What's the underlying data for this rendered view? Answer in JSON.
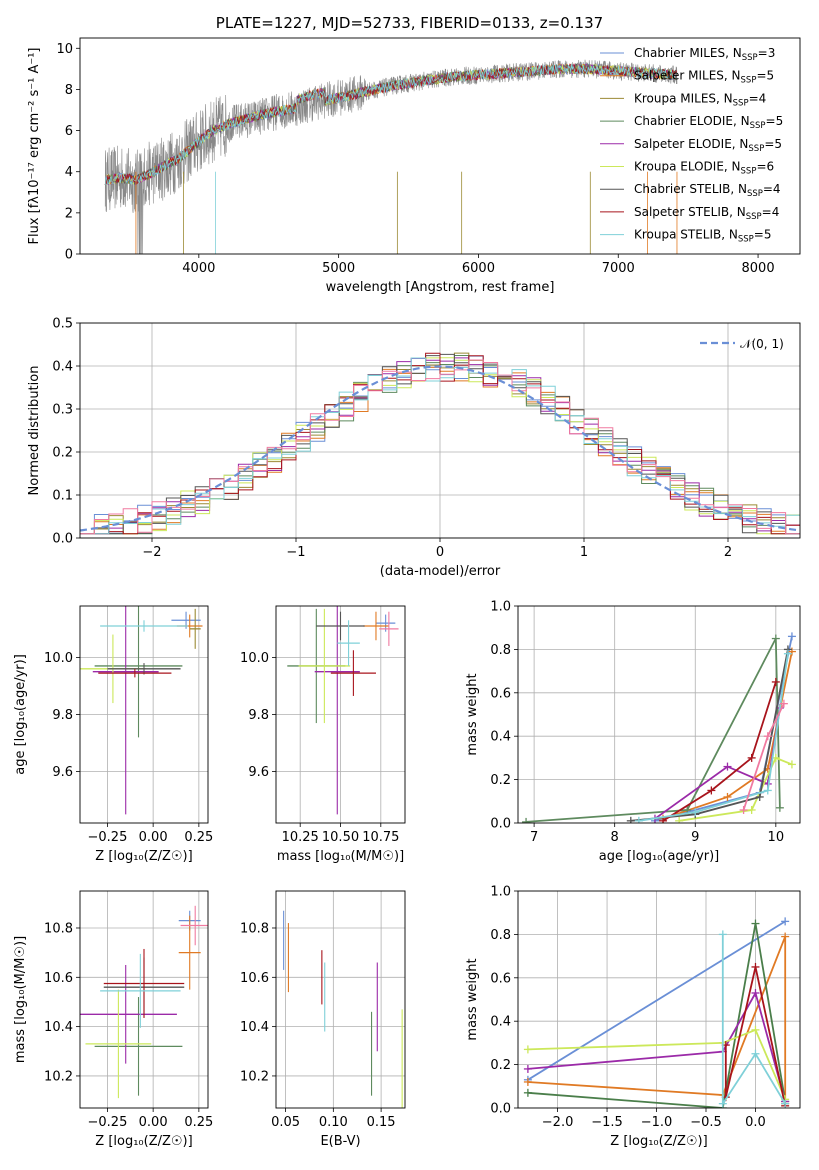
{
  "colors": [
    "#6a8fd6",
    "#e07a24",
    "#9b8a34",
    "#5e8a5e",
    "#9b2aa8",
    "#cce85a",
    "#555555",
    "#a8141c",
    "#7fd0d8",
    "#888888",
    "#f07aa0",
    "#4a7e4a"
  ],
  "chart_data": [
    {
      "id": "spectrum",
      "type": "line",
      "title": "PLATE=1227, MJD=52733, FIBERID=0133, z=0.137",
      "xlabel": "wavelength [Angstrom, rest frame]",
      "ylabel": "Flux [fλ10⁻¹⁷ erg cm⁻² s⁻¹ A⁻¹]",
      "xlim": [
        3150,
        8300
      ],
      "ylim": [
        0,
        10.5
      ],
      "xticks": [
        4000,
        5000,
        6000,
        7000,
        8000
      ],
      "yticks": [
        0,
        2,
        4,
        6,
        8,
        10
      ],
      "xtick_labels": [
        "4000",
        "5000",
        "6000",
        "7000",
        "8000"
      ],
      "ytick_labels": [
        "0",
        "2",
        "4",
        "6",
        "8",
        "10"
      ],
      "data_series": {
        "name": "data",
        "color_index": 9,
        "x": [
          3330,
          3450,
          3550,
          3650,
          3750,
          3850,
          3950,
          4100,
          4250,
          4400,
          4550,
          4700,
          4850,
          5000,
          5200,
          5400,
          5600,
          5800,
          6000,
          6200,
          6400,
          6600,
          6800,
          7000,
          7200,
          7420
        ],
        "y": [
          3.6,
          3.7,
          3.5,
          3.9,
          4.2,
          4.6,
          5.2,
          6.0,
          6.4,
          6.6,
          6.9,
          7.1,
          7.4,
          7.6,
          7.9,
          8.2,
          8.4,
          8.6,
          8.7,
          8.8,
          8.9,
          9.0,
          9.0,
          8.9,
          8.8,
          8.7
        ]
      },
      "model_x": [
        3330,
        3450,
        3550,
        3650,
        3750,
        3850,
        3950,
        4100,
        4250,
        4400,
        4550,
        4700,
        4850,
        5000,
        5200,
        5400,
        5600,
        5800,
        6000,
        6200,
        6400,
        6600,
        6800,
        7000,
        7200,
        7420
      ],
      "model_y": [
        3.6,
        3.7,
        3.6,
        3.9,
        4.3,
        4.6,
        5.2,
        6.0,
        6.4,
        6.7,
        6.9,
        7.1,
        7.4,
        7.6,
        7.9,
        8.2,
        8.4,
        8.6,
        8.7,
        8.8,
        8.9,
        9.0,
        9.0,
        8.9,
        8.8,
        8.7
      ],
      "legend": [
        {
          "label": "Chabrier MILES, N",
          "sub": "SSP",
          "eq": "=3",
          "color_index": 0
        },
        {
          "label": "Salpeter MILES, N",
          "sub": "SSP",
          "eq": "=5",
          "color_index": 1
        },
        {
          "label": "Kroupa MILES, N",
          "sub": "SSP",
          "eq": "=4",
          "color_index": 2
        },
        {
          "label": "Chabrier ELODIE, N",
          "sub": "SSP",
          "eq": "=5",
          "color_index": 3
        },
        {
          "label": "Salpeter ELODIE, N",
          "sub": "SSP",
          "eq": "=5",
          "color_index": 4
        },
        {
          "label": "Kroupa ELODIE, N",
          "sub": "SSP",
          "eq": "=6",
          "color_index": 5
        },
        {
          "label": "Chabrier STELIB, N",
          "sub": "SSP",
          "eq": "=4",
          "color_index": 6
        },
        {
          "label": "Salpeter STELIB, N",
          "sub": "SSP",
          "eq": "=4",
          "color_index": 7
        },
        {
          "label": "Kroupa STELIB, N",
          "sub": "SSP",
          "eq": "=5",
          "color_index": 8
        }
      ],
      "legend_position": "right"
    },
    {
      "id": "residuals",
      "type": "line",
      "xlabel": "(data-model)/error",
      "ylabel": "Normed distribution",
      "xlim": [
        -2.5,
        2.5
      ],
      "ylim": [
        0,
        0.5
      ],
      "xticks": [
        -2,
        -1,
        0,
        1,
        2
      ],
      "yticks": [
        0,
        0.1,
        0.2,
        0.3,
        0.4,
        0.5
      ],
      "xtick_labels": [
        "−2",
        "−1",
        "0",
        "1",
        "2"
      ],
      "ytick_labels": [
        "0.0",
        "0.1",
        "0.2",
        "0.3",
        "0.4",
        "0.5"
      ],
      "bin_width": 0.1,
      "gaussian_label": "𝒩(0, 1)",
      "gaussian_color": "#6a8fd6",
      "grid": true,
      "legend_position": "top-right"
    },
    {
      "id": "age_vs_Z",
      "type": "scatter",
      "xlabel": "Z [log₁₀(Z/Z☉)]",
      "ylabel": "age  [log₁₀(age/yr)]",
      "xlim": [
        -0.4,
        0.3
      ],
      "ylim": [
        9.42,
        10.18
      ],
      "xticks": [
        -0.25,
        0,
        0.25
      ],
      "yticks": [
        9.6,
        9.8,
        10.0
      ],
      "xtick_labels": [
        "−0.25",
        "0.00",
        "0.25"
      ],
      "ytick_labels": [
        "9.6",
        "9.8",
        "10.0"
      ],
      "points": [
        {
          "x": 0.18,
          "y": 10.13,
          "xerr": 0.08,
          "yerr": 0.03,
          "c": 0
        },
        {
          "x": 0.2,
          "y": 10.11,
          "xerr": 0.07,
          "yerr": 0.04,
          "c": 1
        },
        {
          "x": 0.23,
          "y": 10.1,
          "xerr": 0.03,
          "yerr": 0.07,
          "c": 2
        },
        {
          "x": -0.08,
          "y": 9.97,
          "xerr": 0.24,
          "yerr": 0.25,
          "c": 3
        },
        {
          "x": -0.15,
          "y": 9.95,
          "xerr": 0.18,
          "yerr": 0.5,
          "c": 4
        },
        {
          "x": -0.22,
          "y": 9.96,
          "xerr": 0.18,
          "yerr": 0.12,
          "c": 5
        },
        {
          "x": -0.05,
          "y": 9.96,
          "xerr": 0.2,
          "yerr": 0.02,
          "c": 6
        },
        {
          "x": -0.1,
          "y": 9.945,
          "xerr": 0.2,
          "yerr": 0.015,
          "c": 7
        },
        {
          "x": -0.05,
          "y": 10.11,
          "xerr": 0.24,
          "yerr": 0.02,
          "c": 8
        }
      ]
    },
    {
      "id": "age_vs_mass",
      "type": "scatter",
      "xlabel": "mass [log₁₀(M/M☉)]",
      "ylabel": "",
      "xlim": [
        10.1,
        10.9
      ],
      "ylim": [
        9.42,
        10.18
      ],
      "xticks": [
        10.25,
        10.5,
        10.75
      ],
      "yticks": [
        9.6,
        9.8,
        10.0
      ],
      "xtick_labels": [
        "10.25",
        "10.50",
        "10.75"
      ],
      "ytick_labels": [
        "9.6",
        "9.8",
        "10.0"
      ],
      "points": [
        {
          "x": 10.78,
          "y": 10.12,
          "xerr": 0.06,
          "yerr": 0.03,
          "c": 0
        },
        {
          "x": 10.72,
          "y": 10.11,
          "xerr": 0.08,
          "yerr": 0.05,
          "c": 1
        },
        {
          "x": 10.8,
          "y": 10.1,
          "xerr": 0.06,
          "yerr": 0.06,
          "c": 10
        },
        {
          "x": 10.35,
          "y": 9.97,
          "xerr": 0.18,
          "yerr": 0.2,
          "c": 3
        },
        {
          "x": 10.48,
          "y": 9.95,
          "xerr": 0.14,
          "yerr": 0.5,
          "c": 4
        },
        {
          "x": 10.4,
          "y": 9.97,
          "xerr": 0.16,
          "yerr": 0.2,
          "c": 5
        },
        {
          "x": 10.5,
          "y": 10.11,
          "xerr": 0.15,
          "yerr": 0.05,
          "c": 6
        },
        {
          "x": 10.58,
          "y": 9.945,
          "xerr": 0.14,
          "yerr": 0.08,
          "c": 7
        },
        {
          "x": 10.55,
          "y": 10.05,
          "xerr": 0.07,
          "yerr": 0.08,
          "c": 8
        }
      ]
    },
    {
      "id": "weight_vs_age",
      "type": "line",
      "xlabel": "age  [log₁₀(age/yr)]",
      "ylabel": "mass weight",
      "xlim": [
        6.8,
        10.3
      ],
      "ylim": [
        0,
        1
      ],
      "xticks": [
        7,
        8,
        9,
        10
      ],
      "yticks": [
        0,
        0.2,
        0.4,
        0.6,
        0.8,
        1.0
      ],
      "xtick_labels": [
        "7",
        "8",
        "9",
        "10"
      ],
      "ytick_labels": [
        "0.0",
        "0.2",
        "0.4",
        "0.6",
        "0.8",
        "1.0"
      ],
      "series": [
        {
          "c": 0,
          "x": [
            8.5,
            9.8,
            10.2
          ],
          "y": [
            0.01,
            0.14,
            0.86
          ]
        },
        {
          "c": 1,
          "x": [
            8.6,
            9.4,
            9.9,
            10.2
          ],
          "y": [
            0.02,
            0.12,
            0.25,
            0.79
          ]
        },
        {
          "c": 3,
          "x": [
            6.9,
            8.9,
            10.0,
            10.05
          ],
          "y": [
            0.005,
            0.06,
            0.85,
            0.07
          ]
        },
        {
          "c": 4,
          "x": [
            8.5,
            9.4,
            9.9,
            10.05
          ],
          "y": [
            0.02,
            0.26,
            0.18,
            0.53
          ]
        },
        {
          "c": 5,
          "x": [
            8.8,
            9.7,
            10.0,
            10.2
          ],
          "y": [
            0.01,
            0.06,
            0.3,
            0.27
          ]
        },
        {
          "c": 6,
          "x": [
            8.2,
            9.0,
            9.8,
            10.15
          ],
          "y": [
            0.01,
            0.04,
            0.12,
            0.8
          ]
        },
        {
          "c": 7,
          "x": [
            8.6,
            9.2,
            9.7,
            10.0
          ],
          "y": [
            0.01,
            0.15,
            0.3,
            0.65
          ]
        },
        {
          "c": 8,
          "x": [
            8.3,
            9.0,
            9.9,
            10.15
          ],
          "y": [
            0.01,
            0.05,
            0.15,
            0.78
          ]
        },
        {
          "c": 10,
          "x": [
            9.6,
            9.9,
            10.1
          ],
          "y": [
            0.06,
            0.4,
            0.55
          ]
        }
      ]
    },
    {
      "id": "mass_vs_Z",
      "type": "scatter",
      "xlabel": "Z [log₁₀(Z/Z☉)]",
      "ylabel": "mass [log₁₀(M/M☉)]",
      "xlim": [
        -0.4,
        0.3
      ],
      "ylim": [
        10.07,
        10.95
      ],
      "xticks": [
        -0.25,
        0,
        0.25
      ],
      "yticks": [
        10.2,
        10.4,
        10.6,
        10.8
      ],
      "xtick_labels": [
        "−0.25",
        "0.00",
        "0.25"
      ],
      "ytick_labels": [
        "10.2",
        "10.4",
        "10.6",
        "10.8"
      ],
      "points": [
        {
          "x": 0.2,
          "y": 10.83,
          "xerr": 0.06,
          "yerr": 0.04,
          "c": 0
        },
        {
          "x": 0.2,
          "y": 10.7,
          "xerr": 0.06,
          "yerr": 0.15,
          "c": 1
        },
        {
          "x": 0.23,
          "y": 10.81,
          "xerr": 0.08,
          "yerr": 0.08,
          "c": 10
        },
        {
          "x": -0.08,
          "y": 10.32,
          "xerr": 0.24,
          "yerr": 0.2,
          "c": 3
        },
        {
          "x": -0.15,
          "y": 10.45,
          "xerr": 0.28,
          "yerr": 0.2,
          "c": 4
        },
        {
          "x": -0.19,
          "y": 10.33,
          "xerr": 0.18,
          "yerr": 0.22,
          "c": 5
        },
        {
          "x": -0.05,
          "y": 10.56,
          "xerr": 0.22,
          "yerr": 0.12,
          "c": 6
        },
        {
          "x": -0.05,
          "y": 10.575,
          "xerr": 0.22,
          "yerr": 0.14,
          "c": 7
        },
        {
          "x": -0.07,
          "y": 10.545,
          "xerr": 0.22,
          "yerr": 0.15,
          "c": 8
        }
      ]
    },
    {
      "id": "mass_vs_ebv",
      "type": "scatter",
      "xlabel": "E(B-V)",
      "ylabel": "",
      "xlim": [
        0.04,
        0.175
      ],
      "ylim": [
        10.07,
        10.95
      ],
      "xticks": [
        0.05,
        0.1,
        0.15
      ],
      "yticks": [
        10.2,
        10.4,
        10.6,
        10.8
      ],
      "xtick_labels": [
        "0.05",
        "0.10",
        "0.15"
      ],
      "ytick_labels": [
        "10.2",
        "10.4",
        "10.6",
        "10.8"
      ],
      "points": [
        {
          "x": 0.048,
          "y": 10.75,
          "xerr": 0,
          "yerr": 0.12,
          "c": 0
        },
        {
          "x": 0.053,
          "y": 10.68,
          "xerr": 0,
          "yerr": 0.14,
          "c": 1
        },
        {
          "x": 0.088,
          "y": 10.6,
          "xerr": 0,
          "yerr": 0.11,
          "c": 7
        },
        {
          "x": 0.091,
          "y": 10.52,
          "xerr": 0,
          "yerr": 0.14,
          "c": 8
        },
        {
          "x": 0.14,
          "y": 10.29,
          "xerr": 0,
          "yerr": 0.17,
          "c": 3
        },
        {
          "x": 0.146,
          "y": 10.48,
          "xerr": 0,
          "yerr": 0.18,
          "c": 4
        },
        {
          "x": 0.172,
          "y": 10.27,
          "xerr": 0,
          "yerr": 0.2,
          "c": 5
        }
      ]
    },
    {
      "id": "weight_vs_Z",
      "type": "line",
      "xlabel": "Z [log₁₀(Z/Z☉)]",
      "ylabel": "mass weight",
      "xlim": [
        -2.4,
        0.45
      ],
      "ylim": [
        0,
        1
      ],
      "xticks": [
        -2.0,
        -1.5,
        -1.0,
        -0.5,
        0.0
      ],
      "yticks": [
        0,
        0.2,
        0.4,
        0.6,
        0.8,
        1.0
      ],
      "xtick_labels": [
        "−2.0",
        "−1.5",
        "−1.0",
        "−0.5",
        "0.0"
      ],
      "ytick_labels": [
        "0.0",
        "0.2",
        "0.4",
        "0.6",
        "0.8",
        "1.0"
      ],
      "series": [
        {
          "c": 0,
          "x": [
            -2.3,
            0.3
          ],
          "y": [
            0.13,
            0.86
          ]
        },
        {
          "c": 1,
          "x": [
            -2.3,
            -0.33,
            0.3,
            0.3
          ],
          "y": [
            0.12,
            0.06,
            0.79,
            0.02
          ]
        },
        {
          "c": 11,
          "x": [
            -2.3,
            -0.33,
            0.0,
            0.3
          ],
          "y": [
            0.07,
            0.0,
            0.85,
            0.03
          ]
        },
        {
          "c": 4,
          "x": [
            -2.3,
            -0.33,
            0.0,
            0.3
          ],
          "y": [
            0.18,
            0.26,
            0.53,
            0.03
          ]
        },
        {
          "c": 5,
          "x": [
            -2.3,
            -0.33,
            0.0,
            0.3
          ],
          "y": [
            0.27,
            0.3,
            0.36,
            0.04
          ]
        },
        {
          "c": 7,
          "x": [
            -0.3,
            -0.3,
            0.0,
            0.3
          ],
          "y": [
            0.29,
            0.05,
            0.65,
            0.01
          ]
        },
        {
          "c": 8,
          "x": [
            -0.33,
            -0.33,
            0.0,
            0.3
          ],
          "y": [
            0.8,
            0.02,
            0.25,
            0.02
          ]
        }
      ]
    }
  ]
}
